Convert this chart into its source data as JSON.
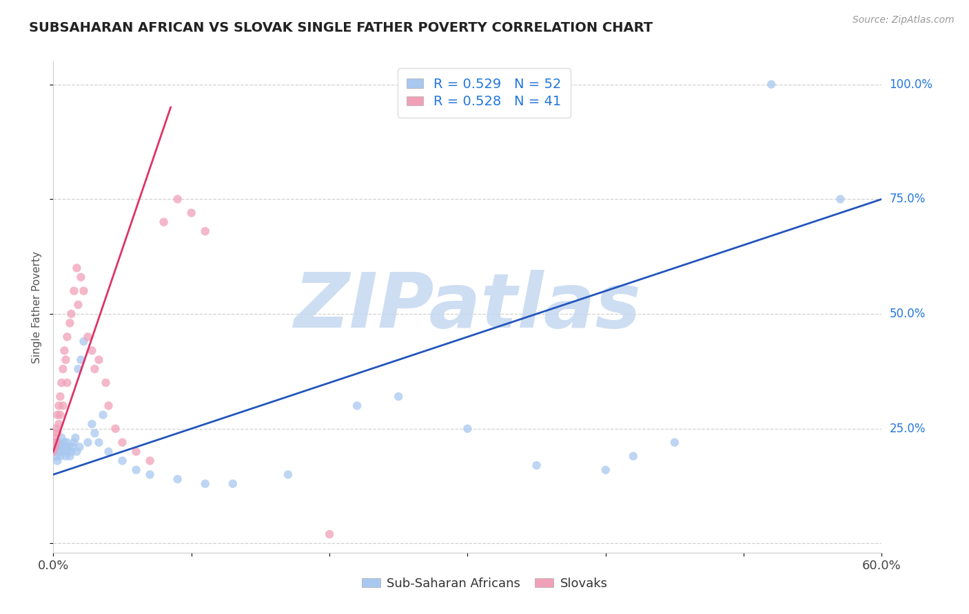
{
  "title": "SUBSAHARAN AFRICAN VS SLOVAK SINGLE FATHER POVERTY CORRELATION CHART",
  "source_text": "Source: ZipAtlas.com",
  "ylabel": "Single Father Poverty",
  "right_yticks": [
    0.0,
    0.25,
    0.5,
    0.75,
    1.0
  ],
  "right_yticklabels": [
    "",
    "25.0%",
    "50.0%",
    "75.0%",
    "100.0%"
  ],
  "blue_R": 0.529,
  "blue_N": 52,
  "pink_R": 0.528,
  "pink_N": 41,
  "blue_label": "Sub-Saharan Africans",
  "pink_label": "Slovaks",
  "blue_color": "#A8C8F0",
  "pink_color": "#F0A0B8",
  "blue_line_color": "#2255BB",
  "pink_line_color": "#DD3366",
  "legend_color": "#2277DD",
  "watermark_text": "ZIPatlas",
  "watermark_color": "#C5D8F0",
  "background_color": "#FFFFFF",
  "xlim": [
    0.0,
    0.6
  ],
  "ylim": [
    -0.02,
    1.05
  ],
  "blue_scatter_x": [
    0.0,
    0.001,
    0.002,
    0.002,
    0.003,
    0.003,
    0.004,
    0.004,
    0.005,
    0.005,
    0.006,
    0.006,
    0.007,
    0.008,
    0.008,
    0.009,
    0.009,
    0.01,
    0.01,
    0.011,
    0.012,
    0.013,
    0.014,
    0.015,
    0.016,
    0.017,
    0.018,
    0.019,
    0.02,
    0.022,
    0.025,
    0.028,
    0.03,
    0.033,
    0.036,
    0.04,
    0.05,
    0.06,
    0.07,
    0.09,
    0.11,
    0.13,
    0.17,
    0.22,
    0.25,
    0.3,
    0.35,
    0.4,
    0.42,
    0.45,
    0.52,
    0.57
  ],
  "blue_scatter_y": [
    0.21,
    0.2,
    0.22,
    0.19,
    0.21,
    0.18,
    0.2,
    0.22,
    0.21,
    0.19,
    0.2,
    0.23,
    0.21,
    0.2,
    0.22,
    0.19,
    0.21,
    0.22,
    0.2,
    0.21,
    0.19,
    0.2,
    0.21,
    0.22,
    0.23,
    0.2,
    0.38,
    0.21,
    0.4,
    0.44,
    0.22,
    0.26,
    0.24,
    0.22,
    0.28,
    0.2,
    0.18,
    0.16,
    0.15,
    0.14,
    0.13,
    0.13,
    0.15,
    0.3,
    0.32,
    0.25,
    0.17,
    0.16,
    0.19,
    0.22,
    1.0,
    0.75
  ],
  "pink_scatter_x": [
    0.0,
    0.0,
    0.001,
    0.001,
    0.002,
    0.002,
    0.003,
    0.003,
    0.004,
    0.004,
    0.005,
    0.005,
    0.006,
    0.007,
    0.007,
    0.008,
    0.009,
    0.01,
    0.01,
    0.012,
    0.013,
    0.015,
    0.017,
    0.018,
    0.02,
    0.022,
    0.025,
    0.028,
    0.03,
    0.033,
    0.038,
    0.04,
    0.045,
    0.05,
    0.06,
    0.07,
    0.08,
    0.09,
    0.1,
    0.11,
    0.2
  ],
  "pink_scatter_y": [
    0.2,
    0.22,
    0.21,
    0.23,
    0.22,
    0.25,
    0.24,
    0.28,
    0.3,
    0.26,
    0.32,
    0.28,
    0.35,
    0.38,
    0.3,
    0.42,
    0.4,
    0.45,
    0.35,
    0.48,
    0.5,
    0.55,
    0.6,
    0.52,
    0.58,
    0.55,
    0.45,
    0.42,
    0.38,
    0.4,
    0.35,
    0.3,
    0.25,
    0.22,
    0.2,
    0.18,
    0.7,
    0.75,
    0.72,
    0.68,
    0.02
  ],
  "blue_trend_x": [
    0.0,
    0.6
  ],
  "blue_trend_y": [
    0.15,
    0.75
  ],
  "pink_trend_x": [
    0.0,
    0.085
  ],
  "pink_trend_y": [
    0.2,
    0.95
  ]
}
